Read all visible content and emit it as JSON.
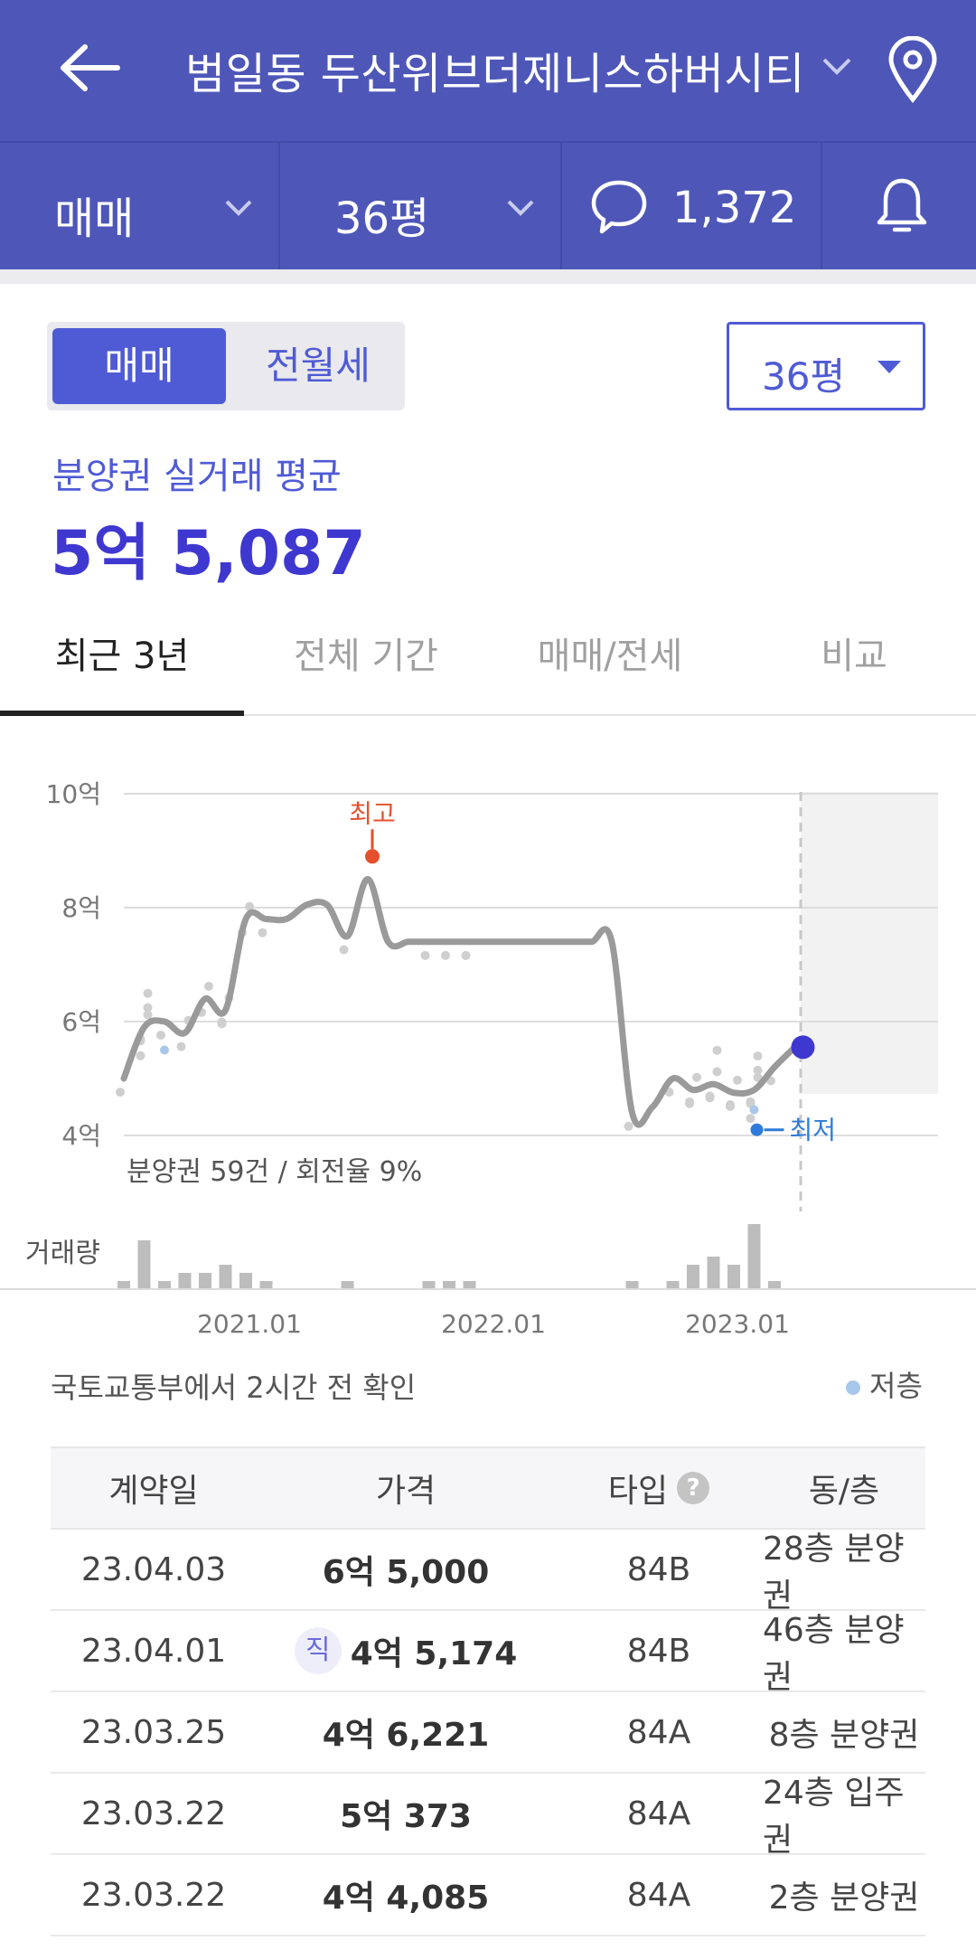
{
  "header": {
    "title": "범일동 두산위브더제니스하버시티"
  },
  "filters": {
    "deal_type": "매매",
    "size": "36평",
    "comments": "1,372"
  },
  "toggle": {
    "active": "매매",
    "inactive": "전월세"
  },
  "size_select": {
    "value": "36평"
  },
  "summary": {
    "label": "분양권 실거래 평균",
    "value": "5억 5,087"
  },
  "tabs": [
    "최근 3년",
    "전체 기간",
    "매매/전세",
    "비교"
  ],
  "chart_labels": {
    "high": "최고",
    "low": "최저",
    "stats": "분양권 59건 / 회전율 9%",
    "volume": "거래량"
  },
  "chart_data": {
    "type": "line",
    "title": "",
    "ylabel": "",
    "yticks": [
      "10억",
      "8억",
      "6억",
      "4억"
    ],
    "ylim": [
      4,
      10
    ],
    "xticks": [
      "2021.01",
      "2022.01",
      "2023.01"
    ],
    "x": [
      "2020-07",
      "2020-08",
      "2020-09",
      "2020-10",
      "2020-11",
      "2020-12",
      "2021-01",
      "2021-02",
      "2021-03",
      "2021-04",
      "2021-05",
      "2021-06",
      "2021-07",
      "2021-08",
      "2021-09",
      "2021-10",
      "2021-11",
      "2021-12",
      "2022-01",
      "2022-02",
      "2022-03",
      "2022-04",
      "2022-05",
      "2022-06",
      "2022-07",
      "2022-08",
      "2022-09",
      "2022-10",
      "2022-11",
      "2022-12",
      "2023-01",
      "2023-02",
      "2023-03",
      "2023-04"
    ],
    "series": [
      {
        "values": [
          5.0,
          5.9,
          6.0,
          5.8,
          6.4,
          6.2,
          7.8,
          7.8,
          7.8,
          8.05,
          8.05,
          7.5,
          8.5,
          7.4,
          7.4,
          7.4,
          7.4,
          7.4,
          7.4,
          7.4,
          7.4,
          7.4,
          7.4,
          7.4,
          7.4,
          4.4,
          4.5,
          5.0,
          4.8,
          4.9,
          4.75,
          4.8,
          5.2,
          5.55
        ]
      }
    ],
    "volume": [
      1,
      6,
      1,
      2,
      2,
      3,
      2,
      1,
      0,
      0,
      0,
      1,
      0,
      0,
      0,
      1,
      1,
      1,
      0,
      0,
      0,
      0,
      0,
      0,
      0,
      1,
      0,
      1,
      3,
      4,
      3,
      8,
      1,
      0
    ],
    "highlights": {
      "high": 8.9,
      "low": 4.1,
      "current": 5.55
    },
    "grid": true
  },
  "note": "국토교통부에서 2시간 전 확인",
  "legend": "저층",
  "table": {
    "headers": [
      "계약일",
      "가격",
      "타입",
      "동/층"
    ],
    "help": "?",
    "direct_badge": "직",
    "rows": [
      {
        "date": "23.04.03",
        "price": "6억 5,000",
        "type": "84B",
        "floor": "28층 분양권"
      },
      {
        "date": "23.04.01",
        "price": "4억 5,174",
        "type": "84B",
        "floor": "46층 분양권"
      },
      {
        "date": "23.03.25",
        "price": "4억 6,221",
        "type": "84A",
        "floor": "8층 분양권"
      },
      {
        "date": "23.03.22",
        "price": "5억 373",
        "type": "84A",
        "floor": "24층 입주권"
      },
      {
        "date": "23.03.22",
        "price": "4억 4,085",
        "type": "84A",
        "floor": "2층 분양권"
      }
    ]
  },
  "colors": {
    "brand": "#4e57b8",
    "accent": "#4f5bd5",
    "high": "#e4502c",
    "low": "#2f7bd9",
    "current": "#3f38d0"
  }
}
